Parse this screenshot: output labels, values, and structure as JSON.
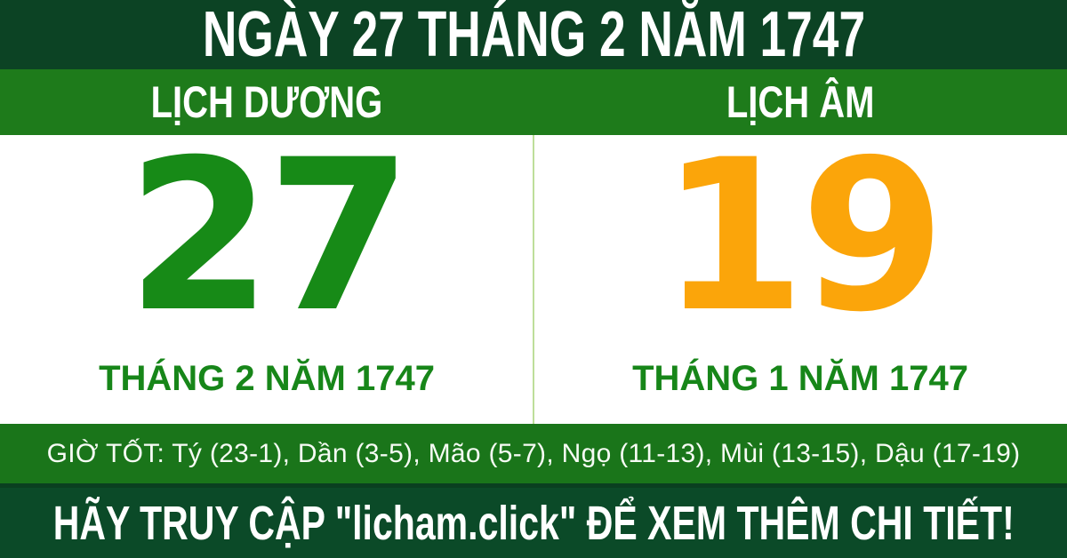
{
  "header": {
    "title": "NGÀY 27 THÁNG 2 NĂM 1747"
  },
  "solar": {
    "label": "LỊCH DƯƠNG",
    "day": "27",
    "month_year": "THÁNG 2 NĂM 1747"
  },
  "lunar": {
    "label": "LỊCH ÂM",
    "day": "19",
    "month_year": "THÁNG 1 NĂM 1747"
  },
  "good_hours": {
    "text": "GIỜ TỐT: Tý (23-1), Dần (3-5), Mão (5-7), Ngọ (11-13), Mùi (13-15), Dậu (17-19)"
  },
  "footer": {
    "text": "HÃY TRUY CẬP \"licham.click\" ĐỂ XEM THÊM CHI TIẾT!"
  },
  "colors": {
    "header_dark_green": "#0c4324",
    "section_bar_green": "#1e7b1b",
    "hours_bar_green": "#1a751a",
    "footer_dark_green": "#0b4a28",
    "solar_day_green": "#178a17",
    "lunar_day_orange": "#fba50a",
    "month_label_green": "#178619",
    "divider_light_green": "#bede9a",
    "text_white": "#ffffff"
  }
}
